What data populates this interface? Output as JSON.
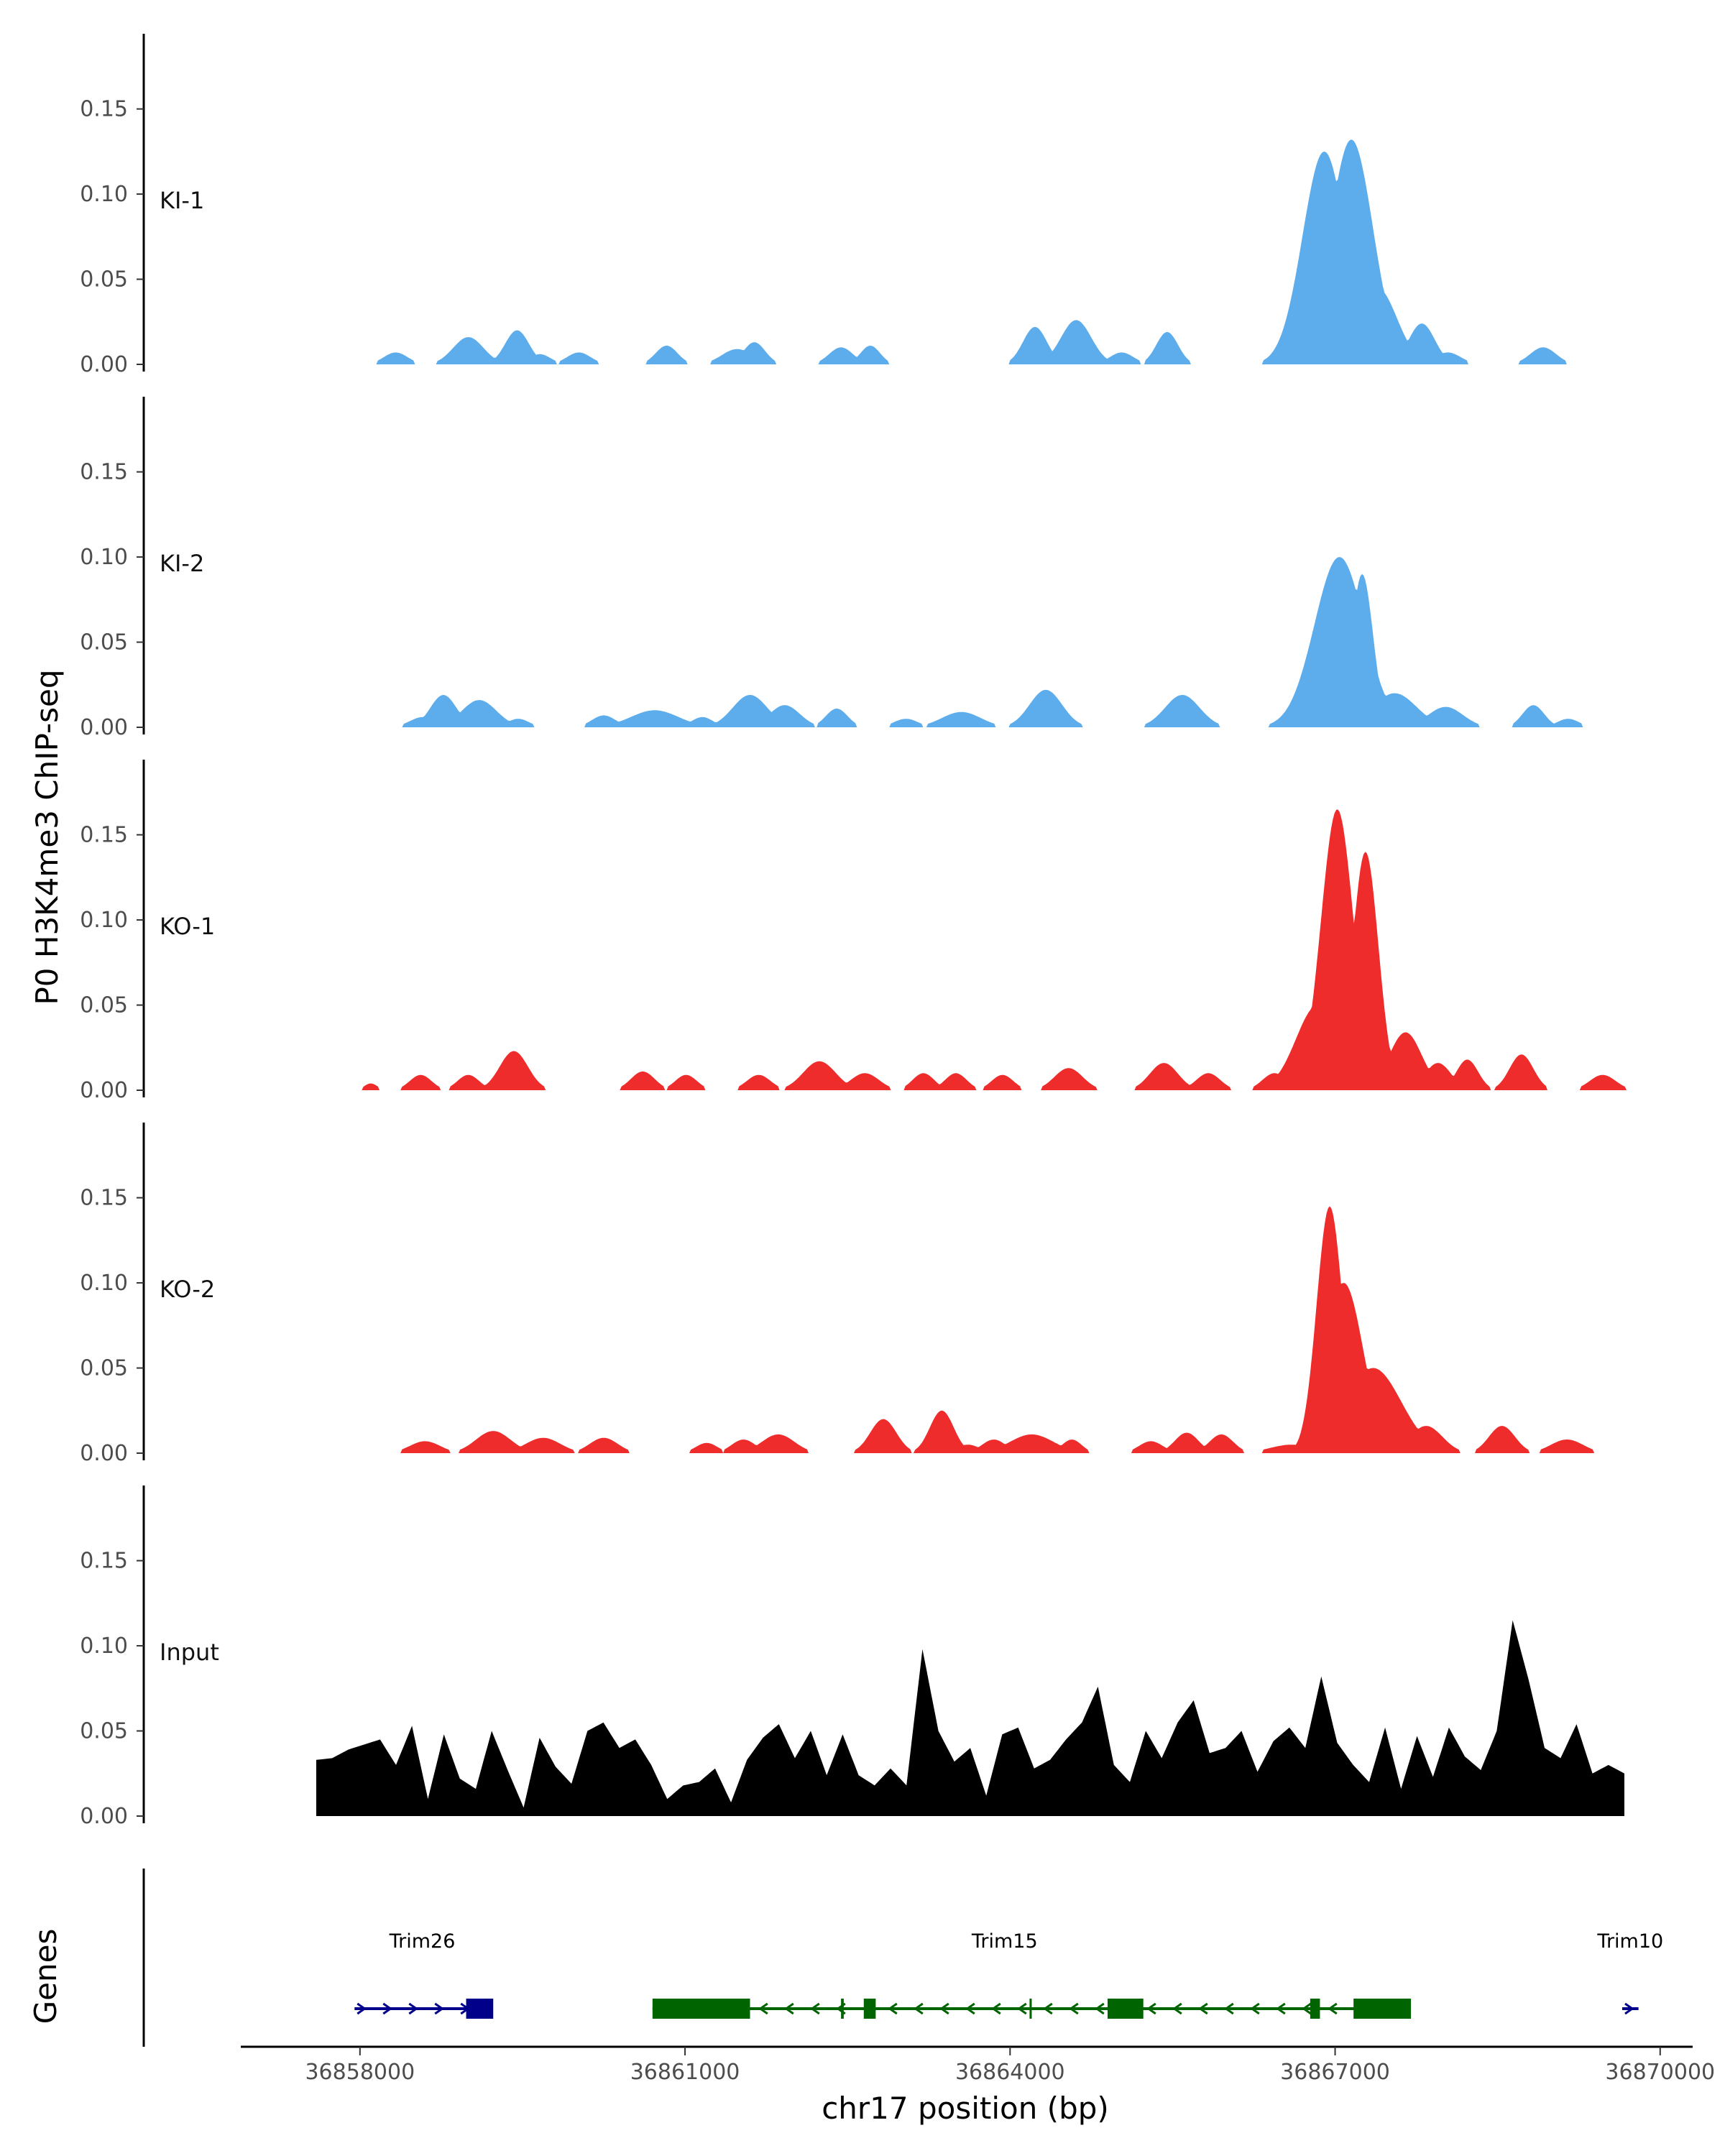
{
  "chart_data": {
    "type": "area",
    "ylabel": "P0 H3K4me3 ChIP-seq",
    "xlabel": "chr17 position (bp)",
    "xlim": [
      36856900,
      36870300
    ],
    "ylim": [
      0,
      0.195
    ],
    "x_ticks": [
      36858000,
      36861000,
      36864000,
      36867000,
      36870000
    ],
    "x_tick_labels": [
      "36858000",
      "36861000",
      "36864000",
      "36867000",
      "36870000"
    ],
    "y_ticks": [
      0,
      0.05,
      0.1,
      0.15
    ],
    "y_tick_labels": [
      "0.00",
      "0.05",
      "0.10",
      "0.15"
    ],
    "tracks": [
      {
        "name": "KI-1",
        "color": "#5DADEC",
        "peaks": [
          [
            36858330,
            0.007,
            110
          ],
          [
            36859000,
            0.016,
            140
          ],
          [
            36859450,
            0.02,
            110
          ],
          [
            36859660,
            0.006,
            100
          ],
          [
            36860020,
            0.007,
            110
          ],
          [
            36860830,
            0.011,
            100
          ],
          [
            36861480,
            0.009,
            140
          ],
          [
            36861640,
            0.013,
            100
          ],
          [
            36862440,
            0.01,
            110
          ],
          [
            36862710,
            0.011,
            90
          ],
          [
            36864230,
            0.022,
            110
          ],
          [
            36864610,
            0.026,
            140
          ],
          [
            36865030,
            0.007,
            110
          ],
          [
            36865450,
            0.019,
            100
          ],
          [
            36866900,
            0.125,
            200
          ],
          [
            36867150,
            0.132,
            200
          ],
          [
            36867390,
            0.045,
            180
          ],
          [
            36867800,
            0.024,
            120
          ],
          [
            36868040,
            0.007,
            120
          ],
          [
            36868920,
            0.01,
            120
          ]
        ]
      },
      {
        "name": "KI-2",
        "color": "#5DADEC",
        "peaks": [
          [
            36858580,
            0.006,
            120
          ],
          [
            36858770,
            0.019,
            120
          ],
          [
            36859100,
            0.016,
            160
          ],
          [
            36859460,
            0.005,
            100
          ],
          [
            36860250,
            0.007,
            110
          ],
          [
            36860720,
            0.01,
            220
          ],
          [
            36861160,
            0.006,
            100
          ],
          [
            36861600,
            0.019,
            160
          ],
          [
            36861920,
            0.013,
            140
          ],
          [
            36862400,
            0.011,
            100
          ],
          [
            36863040,
            0.005,
            110
          ],
          [
            36863550,
            0.009,
            180
          ],
          [
            36864330,
            0.022,
            150
          ],
          [
            36865590,
            0.019,
            160
          ],
          [
            36866680,
            0.005,
            160
          ],
          [
            36867040,
            0.1,
            230
          ],
          [
            36867250,
            0.09,
            100
          ],
          [
            36867550,
            0.02,
            200
          ],
          [
            36868020,
            0.012,
            160
          ],
          [
            36868830,
            0.013,
            100
          ],
          [
            36869150,
            0.005,
            100
          ]
        ]
      },
      {
        "name": "KO-1",
        "color": "#EE2C2C",
        "peaks": [
          [
            36858100,
            0.004,
            60
          ],
          [
            36858560,
            0.009,
            100
          ],
          [
            36859000,
            0.009,
            100
          ],
          [
            36859420,
            0.023,
            130
          ],
          [
            36860610,
            0.011,
            110
          ],
          [
            36861010,
            0.009,
            100
          ],
          [
            36861680,
            0.009,
            110
          ],
          [
            36862240,
            0.017,
            150
          ],
          [
            36862660,
            0.01,
            130
          ],
          [
            36863200,
            0.01,
            100
          ],
          [
            36863500,
            0.01,
            100
          ],
          [
            36863930,
            0.009,
            100
          ],
          [
            36864540,
            0.013,
            130
          ],
          [
            36865420,
            0.016,
            130
          ],
          [
            36865830,
            0.01,
            110
          ],
          [
            36866440,
            0.01,
            110
          ],
          [
            36867020,
            0.165,
            150
          ],
          [
            36867280,
            0.14,
            120
          ],
          [
            36866840,
            0.05,
            200
          ],
          [
            36867650,
            0.034,
            150
          ],
          [
            36867950,
            0.016,
            120
          ],
          [
            36868220,
            0.018,
            100
          ],
          [
            36868720,
            0.021,
            110
          ],
          [
            36869470,
            0.009,
            120
          ]
        ]
      },
      {
        "name": "KO-2",
        "color": "#EE2C2C",
        "peaks": [
          [
            36858600,
            0.007,
            140
          ],
          [
            36859230,
            0.013,
            160
          ],
          [
            36859690,
            0.009,
            160
          ],
          [
            36860250,
            0.009,
            130
          ],
          [
            36861200,
            0.006,
            100
          ],
          [
            36861540,
            0.008,
            110
          ],
          [
            36861860,
            0.011,
            150
          ],
          [
            36862830,
            0.02,
            120
          ],
          [
            36863370,
            0.025,
            110
          ],
          [
            36863610,
            0.005,
            110
          ],
          [
            36863850,
            0.008,
            110
          ],
          [
            36864200,
            0.011,
            200
          ],
          [
            36864570,
            0.008,
            90
          ],
          [
            36865300,
            0.007,
            110
          ],
          [
            36865630,
            0.012,
            110
          ],
          [
            36865950,
            0.011,
            110
          ],
          [
            36866600,
            0.005,
            200
          ],
          [
            36866950,
            0.145,
            120
          ],
          [
            36867080,
            0.1,
            180
          ],
          [
            36867350,
            0.05,
            260
          ],
          [
            36867550,
            0.02,
            200
          ],
          [
            36867840,
            0.016,
            150
          ],
          [
            36868540,
            0.016,
            120
          ],
          [
            36869140,
            0.008,
            150
          ]
        ]
      },
      {
        "name": "Input",
        "color": "#000000",
        "samples": [
          0.033,
          0.034,
          0.039,
          0.042,
          0.045,
          0.03,
          0.053,
          0.01,
          0.048,
          0.022,
          0.016,
          0.05,
          0.027,
          0.005,
          0.046,
          0.029,
          0.019,
          0.05,
          0.055,
          0.04,
          0.045,
          0.03,
          0.01,
          0.018,
          0.02,
          0.028,
          0.008,
          0.033,
          0.046,
          0.054,
          0.034,
          0.05,
          0.024,
          0.048,
          0.024,
          0.018,
          0.028,
          0.018,
          0.098,
          0.05,
          0.032,
          0.04,
          0.012,
          0.048,
          0.052,
          0.028,
          0.033,
          0.045,
          0.055,
          0.076,
          0.03,
          0.02,
          0.05,
          0.034,
          0.055,
          0.068,
          0.037,
          0.04,
          0.05,
          0.026,
          0.044,
          0.052,
          0.04,
          0.082,
          0.043,
          0.03,
          0.02,
          0.052,
          0.016,
          0.047,
          0.023,
          0.052,
          0.035,
          0.027,
          0.05,
          0.115,
          0.08,
          0.04,
          0.034,
          0.054,
          0.025,
          0.03,
          0.025
        ]
      }
    ],
    "genes_panel": {
      "label": "Genes",
      "genes": [
        {
          "name": "Trim26",
          "start": 36857950,
          "end": 36859200,
          "strand": "+",
          "color": "#00008B",
          "exons": [
            [
              36858980,
              36859230
            ]
          ]
        },
        {
          "name": "Trim15",
          "start": 36860700,
          "end": 36867200,
          "strand": "-",
          "color": "#006400",
          "exons": [
            [
              36860700,
              36861600
            ],
            [
              36862440,
              36862465
            ],
            [
              36862650,
              36862760
            ],
            [
              36864180,
              36864200
            ],
            [
              36864900,
              36865230
            ],
            [
              36866770,
              36866860
            ],
            [
              36867170,
              36867700
            ]
          ]
        },
        {
          "name": "Trim10",
          "start": 36869650,
          "end": 36869800,
          "strand": "+",
          "color": "#00008B",
          "exons": []
        }
      ]
    }
  }
}
